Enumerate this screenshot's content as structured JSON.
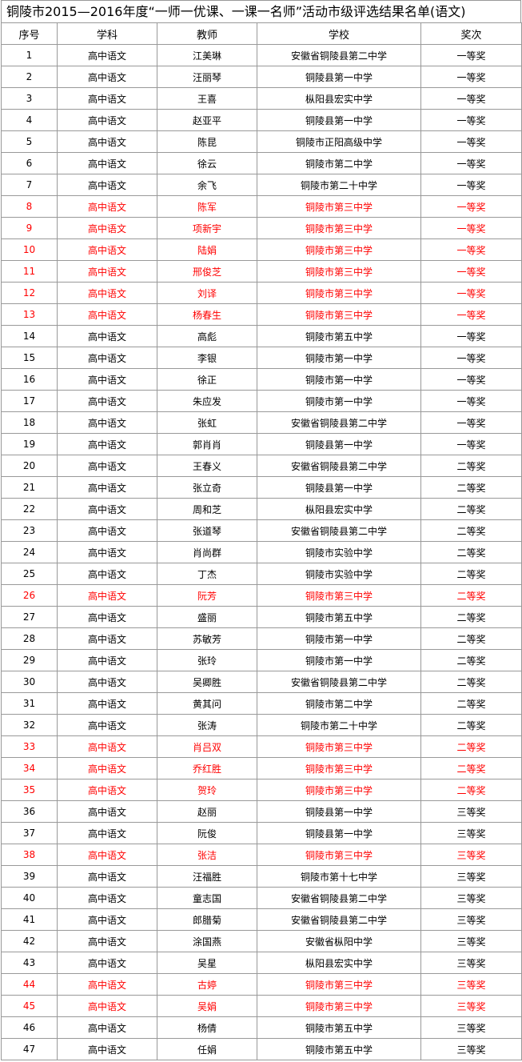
{
  "title": "铜陵市2015—2016年度“一师一优课、一课一名师”活动市级评选结果名单(语文)",
  "table": {
    "header": [
      "序号",
      "学科",
      "教师",
      "学校",
      "奖次"
    ],
    "rows": [
      {
        "cells": [
          "1",
          "高中语文",
          "江美琳",
          "安徽省铜陵县第二中学",
          "一等奖"
        ],
        "color": "#000000"
      },
      {
        "cells": [
          "2",
          "高中语文",
          "汪丽琴",
          "铜陵县第一中学",
          "一等奖"
        ],
        "color": "#000000"
      },
      {
        "cells": [
          "3",
          "高中语文",
          "王喜",
          "枞阳县宏实中学",
          "一等奖"
        ],
        "color": "#000000"
      },
      {
        "cells": [
          "4",
          "高中语文",
          "赵亚平",
          "铜陵县第一中学",
          "一等奖"
        ],
        "color": "#000000"
      },
      {
        "cells": [
          "5",
          "高中语文",
          "陈昆",
          "铜陵市正阳高级中学",
          "一等奖"
        ],
        "color": "#000000"
      },
      {
        "cells": [
          "6",
          "高中语文",
          "徐云",
          "铜陵市第二中学",
          "一等奖"
        ],
        "color": "#000000"
      },
      {
        "cells": [
          "7",
          "高中语文",
          "余飞",
          "铜陵市第二十中学",
          "一等奖"
        ],
        "color": "#000000"
      },
      {
        "cells": [
          "8",
          "高中语文",
          "陈军",
          "铜陵市第三中学",
          "一等奖"
        ],
        "color": "#ff0000"
      },
      {
        "cells": [
          "9",
          "高中语文",
          "项新宇",
          "铜陵市第三中学",
          "一等奖"
        ],
        "color": "#ff0000"
      },
      {
        "cells": [
          "10",
          "高中语文",
          "陆娟",
          "铜陵市第三中学",
          "一等奖"
        ],
        "color": "#ff0000"
      },
      {
        "cells": [
          "11",
          "高中语文",
          "邢俊芝",
          "铜陵市第三中学",
          "一等奖"
        ],
        "color": "#ff0000"
      },
      {
        "cells": [
          "12",
          "高中语文",
          "刘译",
          "铜陵市第三中学",
          "一等奖"
        ],
        "color": "#ff0000"
      },
      {
        "cells": [
          "13",
          "高中语文",
          "杨春生",
          "铜陵市第三中学",
          "一等奖"
        ],
        "color": "#ff0000"
      },
      {
        "cells": [
          "14",
          "高中语文",
          "高彪",
          "铜陵市第五中学",
          "一等奖"
        ],
        "color": "#000000"
      },
      {
        "cells": [
          "15",
          "高中语文",
          "李银",
          "铜陵市第一中学",
          "一等奖"
        ],
        "color": "#000000"
      },
      {
        "cells": [
          "16",
          "高中语文",
          "徐正",
          "铜陵市第一中学",
          "一等奖"
        ],
        "color": "#000000"
      },
      {
        "cells": [
          "17",
          "高中语文",
          "朱应发",
          "铜陵市第一中学",
          "一等奖"
        ],
        "color": "#000000"
      },
      {
        "cells": [
          "18",
          "高中语文",
          "张虹",
          "安徽省铜陵县第二中学",
          "一等奖"
        ],
        "color": "#000000"
      },
      {
        "cells": [
          "19",
          "高中语文",
          "郭肖肖",
          "铜陵县第一中学",
          "一等奖"
        ],
        "color": "#000000"
      },
      {
        "cells": [
          "20",
          "高中语文",
          "王春义",
          "安徽省铜陵县第二中学",
          "二等奖"
        ],
        "color": "#000000"
      },
      {
        "cells": [
          "21",
          "高中语文",
          "张立奇",
          "铜陵县第一中学",
          "二等奖"
        ],
        "color": "#000000"
      },
      {
        "cells": [
          "22",
          "高中语文",
          "周和芝",
          "枞阳县宏实中学",
          "二等奖"
        ],
        "color": "#000000"
      },
      {
        "cells": [
          "23",
          "高中语文",
          "张道琴",
          "安徽省铜陵县第二中学",
          "二等奖"
        ],
        "color": "#000000"
      },
      {
        "cells": [
          "24",
          "高中语文",
          "肖尚群",
          "铜陵市实验中学",
          "二等奖"
        ],
        "color": "#000000"
      },
      {
        "cells": [
          "25",
          "高中语文",
          "丁杰",
          "铜陵市实验中学",
          "二等奖"
        ],
        "color": "#000000"
      },
      {
        "cells": [
          "26",
          "高中语文",
          "阮芳",
          "铜陵市第三中学",
          "二等奖"
        ],
        "color": "#ff0000"
      },
      {
        "cells": [
          "27",
          "高中语文",
          "盛丽",
          "铜陵市第五中学",
          "二等奖"
        ],
        "color": "#000000"
      },
      {
        "cells": [
          "28",
          "高中语文",
          "苏敏芳",
          "铜陵市第一中学",
          "二等奖"
        ],
        "color": "#000000"
      },
      {
        "cells": [
          "29",
          "高中语文",
          "张玲",
          "铜陵市第一中学",
          "二等奖"
        ],
        "color": "#000000"
      },
      {
        "cells": [
          "30",
          "高中语文",
          "吴卿胜",
          "安徽省铜陵县第二中学",
          "二等奖"
        ],
        "color": "#000000"
      },
      {
        "cells": [
          "31",
          "高中语文",
          "黄其问",
          "铜陵市第二中学",
          "二等奖"
        ],
        "color": "#000000"
      },
      {
        "cells": [
          "32",
          "高中语文",
          "张涛",
          "铜陵市第二十中学",
          "二等奖"
        ],
        "color": "#000000"
      },
      {
        "cells": [
          "33",
          "高中语文",
          "肖吕双",
          "铜陵市第三中学",
          "二等奖"
        ],
        "color": "#ff0000"
      },
      {
        "cells": [
          "34",
          "高中语文",
          "乔红胜",
          "铜陵市第三中学",
          "二等奖"
        ],
        "color": "#ff0000"
      },
      {
        "cells": [
          "35",
          "高中语文",
          "贺玲",
          "铜陵市第三中学",
          "二等奖"
        ],
        "color": "#ff0000"
      },
      {
        "cells": [
          "36",
          "高中语文",
          "赵丽",
          "铜陵县第一中学",
          "三等奖"
        ],
        "color": "#000000"
      },
      {
        "cells": [
          "37",
          "高中语文",
          "阮俊",
          "铜陵县第一中学",
          "三等奖"
        ],
        "color": "#000000"
      },
      {
        "cells": [
          "38",
          "高中语文",
          "张洁",
          "铜陵市第三中学",
          "三等奖"
        ],
        "color": "#ff0000"
      },
      {
        "cells": [
          "39",
          "高中语文",
          "汪福胜",
          "铜陵市第十七中学",
          "三等奖"
        ],
        "color": "#000000"
      },
      {
        "cells": [
          "40",
          "高中语文",
          "童志国",
          "安徽省铜陵县第二中学",
          "三等奖"
        ],
        "color": "#000000"
      },
      {
        "cells": [
          "41",
          "高中语文",
          "郎腊菊",
          "安徽省铜陵县第二中学",
          "三等奖"
        ],
        "color": "#000000"
      },
      {
        "cells": [
          "42",
          "高中语文",
          "涂国燕",
          "安徽省枞阳中学",
          "三等奖"
        ],
        "color": "#000000"
      },
      {
        "cells": [
          "43",
          "高中语文",
          "吴星",
          "枞阳县宏实中学",
          "三等奖"
        ],
        "color": "#000000"
      },
      {
        "cells": [
          "44",
          "高中语文",
          "古婷",
          "铜陵市第三中学",
          "三等奖"
        ],
        "color": "#ff0000"
      },
      {
        "cells": [
          "45",
          "高中语文",
          "吴娟",
          "铜陵市第三中学",
          "三等奖"
        ],
        "color": "#ff0000"
      },
      {
        "cells": [
          "46",
          "高中语文",
          "杨倩",
          "铜陵市第五中学",
          "三等奖"
        ],
        "color": "#000000"
      },
      {
        "cells": [
          "47",
          "高中语文",
          "任娟",
          "铜陵市第五中学",
          "三等奖"
        ],
        "color": "#000000"
      }
    ]
  }
}
